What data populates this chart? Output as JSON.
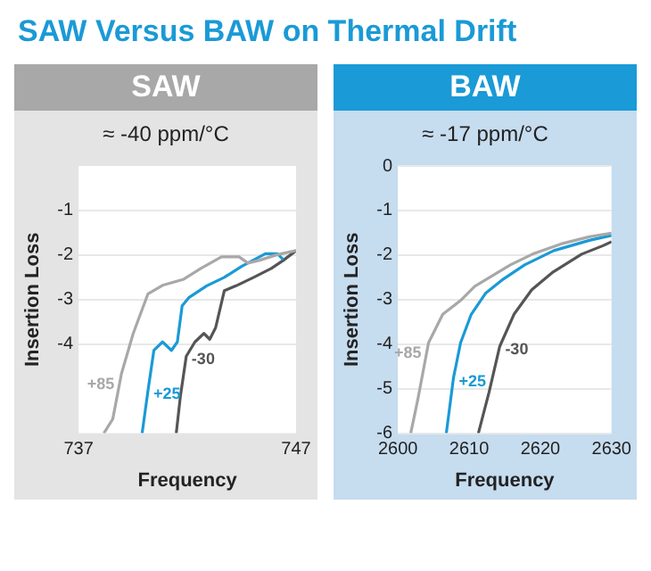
{
  "chart_data": [
    {
      "type": "line",
      "title": "SAW",
      "subtitle": "≈ -40 ppm/°C",
      "xlabel": "Frequency",
      "ylabel": "Insertion Loss",
      "annotations": [
        "SAW Versus BAW on Thermal Drift"
      ],
      "xlim": [
        737,
        747
      ],
      "xticks": [
        737,
        747
      ],
      "ylim": [
        -6,
        0
      ],
      "yticks": [
        -1,
        -2,
        -3,
        -4
      ],
      "grid": "y",
      "marker": "none",
      "series": [
        {
          "name": "+85",
          "color": "#a8a8a8",
          "x": [
            738.16,
            738.57,
            738.97,
            739.51,
            740.19,
            740.86,
            741.8,
            742.62,
            743.57,
            744.38,
            744.78,
            745.3,
            746.14,
            747
          ],
          "values": [
            -6,
            -5.68,
            -4.66,
            -3.76,
            -2.87,
            -2.68,
            -2.55,
            -2.3,
            -2.04,
            -2.04,
            -2.18,
            -2.12,
            -1.99,
            -1.9
          ]
        },
        {
          "name": "+25",
          "color": "#1a9ad6",
          "x": [
            739.92,
            740.19,
            740.46,
            740.86,
            741.27,
            741.54,
            741.76,
            742.08,
            742.89,
            743.7,
            744.51,
            745.59,
            746.14,
            746.41
          ],
          "values": [
            -6,
            -5.04,
            -4.14,
            -3.95,
            -4.14,
            -3.95,
            -3.14,
            -2.95,
            -2.69,
            -2.5,
            -2.25,
            -1.97,
            -1.97,
            -2.1
          ]
        },
        {
          "name": "-30",
          "color": "#555555",
          "x": [
            741.49,
            741.68,
            741.95,
            742.35,
            742.76,
            743.03,
            743.3,
            743.7,
            744.24,
            745.05,
            745.86,
            746.41,
            747
          ],
          "values": [
            -6,
            -5.17,
            -4.27,
            -3.95,
            -3.76,
            -3.89,
            -3.63,
            -2.8,
            -2.69,
            -2.5,
            -2.3,
            -2.12,
            -1.9
          ]
        }
      ]
    },
    {
      "type": "line",
      "title": "BAW",
      "subtitle": "≈ -17 ppm/°C",
      "xlabel": "Frequency",
      "ylabel": "Insertion Loss",
      "xlim": [
        2600,
        2630
      ],
      "xticks": [
        2600,
        2610,
        2620,
        2630
      ],
      "ylim": [
        -6,
        0
      ],
      "yticks": [
        0,
        -1,
        -2,
        -3,
        -4,
        -5,
        -6
      ],
      "grid": "y",
      "marker": "none",
      "series": [
        {
          "name": "+85",
          "color": "#a8a8a8",
          "x": [
            2601.8,
            2602.8,
            2604.3,
            2606.3,
            2608.8,
            2610.8,
            2613.3,
            2615.8,
            2618.9,
            2622.9,
            2626.9,
            2630
          ],
          "values": [
            -6,
            -5.24,
            -3.97,
            -3.33,
            -3.02,
            -2.7,
            -2.46,
            -2.22,
            -1.98,
            -1.75,
            -1.59,
            -1.51
          ]
        },
        {
          "name": "+25",
          "color": "#1a9ad6",
          "x": [
            2606.8,
            2607.8,
            2608.8,
            2610.3,
            2612.3,
            2614.8,
            2617.8,
            2621.9,
            2626.9,
            2630
          ],
          "values": [
            -6,
            -4.76,
            -3.97,
            -3.33,
            -2.86,
            -2.54,
            -2.22,
            -1.9,
            -1.67,
            -1.56
          ]
        },
        {
          "name": "-30",
          "color": "#555555",
          "x": [
            2611.3,
            2612.8,
            2614.3,
            2616.3,
            2618.8,
            2621.8,
            2625.8,
            2628.8,
            2630
          ],
          "values": [
            -6,
            -5.08,
            -4.05,
            -3.33,
            -2.78,
            -2.38,
            -1.98,
            -1.79,
            -1.7
          ]
        }
      ]
    }
  ]
}
